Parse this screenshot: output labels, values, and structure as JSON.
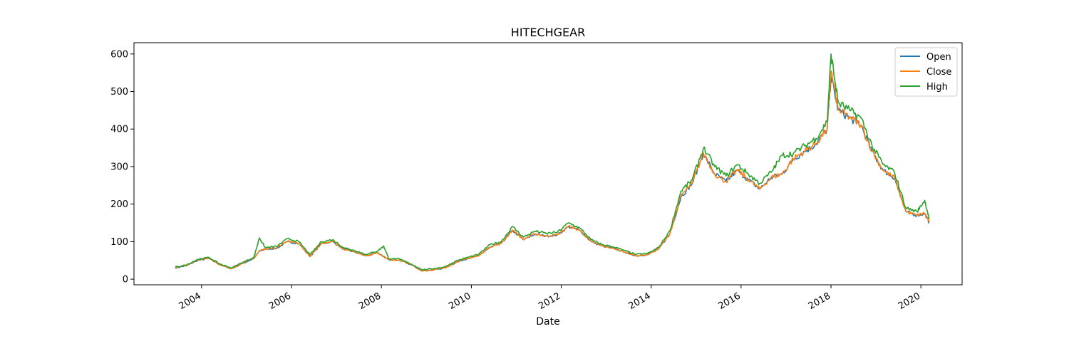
{
  "chart_data": {
    "type": "line",
    "title": "HITECHGEAR",
    "xlabel": "Date",
    "ylabel": "",
    "xlim": [
      "2002-07-01",
      "2020-12-01"
    ],
    "ylim": [
      -15,
      630
    ],
    "x_ticks": [
      "2004-01-01",
      "2006-01-01",
      "2008-01-01",
      "2010-01-01",
      "2012-01-01",
      "2014-01-01",
      "2016-01-01",
      "2018-01-01",
      "2020-01-01"
    ],
    "x_tick_labels": [
      "2004",
      "2006",
      "2008",
      "2010",
      "2012",
      "2014",
      "2016",
      "2018",
      "2020"
    ],
    "y_ticks": [
      0,
      100,
      200,
      300,
      400,
      500,
      600
    ],
    "y_tick_labels": [
      "0",
      "100",
      "200",
      "300",
      "400",
      "500",
      "600"
    ],
    "grid": false,
    "legend_position": "top-right",
    "dates": [
      "2003-06-01",
      "2003-09-01",
      "2003-12-01",
      "2004-03-01",
      "2004-06-01",
      "2004-09-01",
      "2004-12-01",
      "2005-03-01",
      "2005-04-15",
      "2005-06-01",
      "2005-09-01",
      "2005-12-01",
      "2006-03-01",
      "2006-06-01",
      "2006-09-01",
      "2006-12-01",
      "2007-03-01",
      "2007-06-01",
      "2007-09-01",
      "2007-12-01",
      "2008-01-20",
      "2008-03-01",
      "2008-06-01",
      "2008-09-01",
      "2008-12-01",
      "2009-03-01",
      "2009-06-01",
      "2009-09-01",
      "2009-12-01",
      "2010-03-01",
      "2010-06-01",
      "2010-09-01",
      "2010-12-01",
      "2011-03-01",
      "2011-06-01",
      "2011-09-01",
      "2011-12-01",
      "2012-03-01",
      "2012-06-01",
      "2012-09-01",
      "2012-12-01",
      "2013-03-01",
      "2013-06-01",
      "2013-09-01",
      "2013-12-01",
      "2014-03-01",
      "2014-06-01",
      "2014-09-01",
      "2014-12-01",
      "2015-03-01",
      "2015-06-01",
      "2015-09-01",
      "2015-12-01",
      "2016-03-01",
      "2016-06-01",
      "2016-09-01",
      "2016-12-01",
      "2017-03-01",
      "2017-06-01",
      "2017-09-01",
      "2017-12-01",
      "2018-01-01",
      "2018-03-01",
      "2018-06-01",
      "2018-09-01",
      "2018-12-01",
      "2019-03-01",
      "2019-06-01",
      "2019-09-01",
      "2019-12-01",
      "2020-02-01",
      "2020-03-10"
    ],
    "series": [
      {
        "name": "Open",
        "color": "#1f77b4",
        "values": [
          30,
          36,
          50,
          55,
          38,
          28,
          42,
          55,
          75,
          80,
          82,
          100,
          95,
          60,
          95,
          100,
          80,
          72,
          62,
          70,
          60,
          52,
          50,
          38,
          22,
          25,
          30,
          45,
          55,
          62,
          85,
          95,
          130,
          105,
          120,
          115,
          118,
          140,
          130,
          100,
          88,
          82,
          72,
          62,
          65,
          80,
          120,
          220,
          255,
          335,
          280,
          260,
          290,
          265,
          240,
          270,
          280,
          320,
          340,
          360,
          400,
          540,
          450,
          430,
          410,
          340,
          290,
          270,
          180,
          170,
          175,
          150
        ]
      },
      {
        "name": "Close",
        "color": "#ff7f0e",
        "values": [
          31,
          37,
          51,
          56,
          38,
          28,
          43,
          56,
          76,
          80,
          83,
          101,
          96,
          60,
          96,
          101,
          80,
          73,
          62,
          70,
          61,
          52,
          50,
          38,
          22,
          25,
          30,
          46,
          55,
          62,
          86,
          95,
          131,
          106,
          121,
          115,
          118,
          141,
          130,
          100,
          88,
          82,
          72,
          62,
          65,
          80,
          120,
          222,
          256,
          336,
          280,
          260,
          291,
          265,
          240,
          271,
          281,
          321,
          341,
          361,
          401,
          555,
          451,
          431,
          411,
          341,
          290,
          270,
          180,
          170,
          176,
          152
        ]
      },
      {
        "name": "High",
        "color": "#2ca02c",
        "values": [
          32,
          38,
          53,
          58,
          40,
          30,
          45,
          58,
          110,
          84,
          87,
          108,
          100,
          65,
          100,
          105,
          84,
          76,
          66,
          75,
          88,
          55,
          53,
          40,
          25,
          28,
          33,
          49,
          58,
          66,
          92,
          100,
          140,
          112,
          128,
          122,
          125,
          150,
          136,
          105,
          92,
          86,
          76,
          66,
          68,
          84,
          128,
          235,
          265,
          350,
          300,
          275,
          305,
          280,
          255,
          285,
          330,
          335,
          355,
          375,
          420,
          600,
          470,
          450,
          430,
          355,
          305,
          285,
          190,
          180,
          210,
          160
        ]
      }
    ]
  }
}
